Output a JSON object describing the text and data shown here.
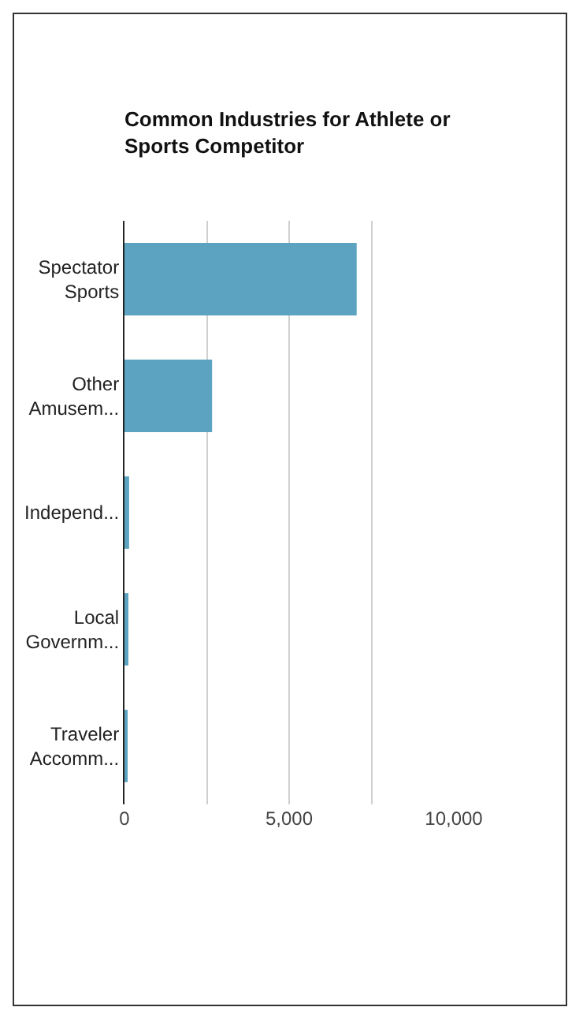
{
  "chart_data": {
    "type": "bar",
    "orientation": "horizontal",
    "title": "Common Industries for Athlete or Sports Competitor",
    "categories": [
      "Spectator Sports",
      "Other Amusem...",
      "Independ...",
      "Local Governm...",
      "Traveler Accomm..."
    ],
    "values": [
      7050,
      2660,
      140,
      120,
      80
    ],
    "color": "#5ba3c1",
    "xlim": [
      0,
      10000
    ],
    "xticks": [
      0,
      {
        "value": 2500,
        "label": null
      },
      {
        "value": 5000,
        "label": "5,000"
      },
      {
        "value": 7500,
        "label": null
      },
      {
        "value": 10000,
        "label": "10,000"
      }
    ],
    "grid": "x"
  }
}
